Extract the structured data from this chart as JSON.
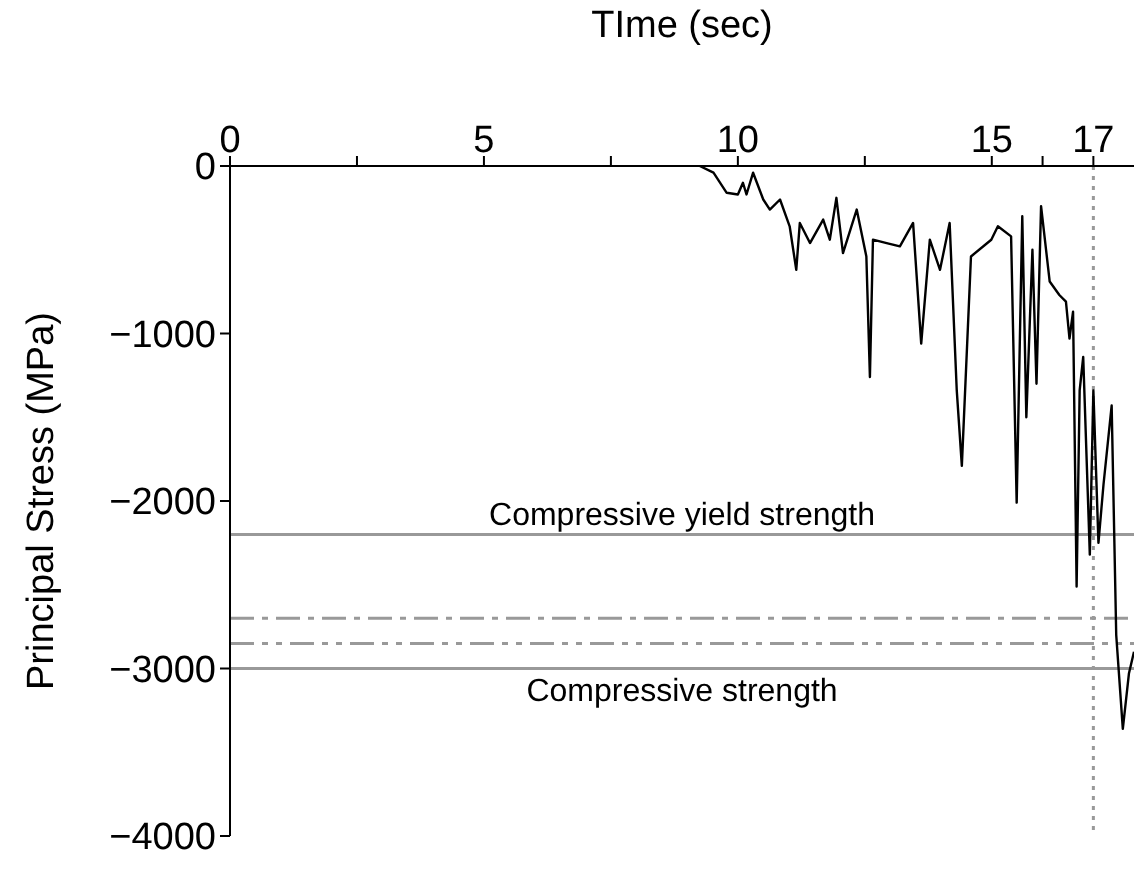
{
  "chart_data": {
    "type": "line",
    "xlabel": "TIme (sec)",
    "ylabel": "Principal Stress (MPa)",
    "x": [
      9.25,
      9.52,
      9.78,
      10.0,
      10.1,
      10.17,
      10.3,
      10.5,
      10.63,
      10.83,
      11.02,
      11.15,
      11.22,
      11.42,
      11.68,
      11.81,
      11.94,
      12.07,
      12.34,
      12.53,
      12.6,
      12.66,
      12.93,
      13.19,
      13.45,
      13.61,
      13.78,
      13.98,
      14.17,
      14.31,
      14.41,
      14.59,
      14.99,
      15.12,
      15.38,
      15.49,
      15.6,
      15.68,
      15.8,
      15.88,
      15.97,
      16.14,
      16.33,
      16.46,
      16.53,
      16.6,
      16.67,
      16.73,
      16.8,
      16.93,
      17.0,
      17.1,
      17.2,
      17.36,
      17.45,
      17.58,
      17.7,
      17.8
    ],
    "series": [
      {
        "color": "#000000",
        "values": [
          0,
          -40,
          -160,
          -170,
          -100,
          -170,
          -40,
          -200,
          -260,
          -200,
          -360,
          -620,
          -340,
          -460,
          -320,
          -440,
          -190,
          -520,
          -260,
          -540,
          -1260,
          -440,
          -460,
          -480,
          -340,
          -1060,
          -440,
          -620,
          -340,
          -1340,
          -1790,
          -540,
          -440,
          -360,
          -420,
          -2010,
          -300,
          -1500,
          -500,
          -1300,
          -240,
          -690,
          -770,
          -810,
          -1030,
          -870,
          -2510,
          -1340,
          -1140,
          -2320,
          -1340,
          -2250,
          -1900,
          -1430,
          -2800,
          -3360,
          -3030,
          -2900
        ]
      }
    ],
    "xlim": [
      0,
      17.8
    ],
    "xticks": [
      0,
      {
        "value": 2.5,
        "label": null
      },
      5,
      {
        "value": 7.5,
        "label": null
      },
      10,
      {
        "value": 12.5,
        "label": null
      },
      15,
      {
        "value": 16,
        "label": null
      },
      17
    ],
    "ylim": [
      -4000,
      0
    ],
    "yticks": [
      {
        "value": -4000,
        "label": "−4000"
      },
      {
        "value": -3000,
        "label": "−3000"
      },
      {
        "value": -2000,
        "label": "−2000"
      },
      {
        "value": -1000,
        "label": "−1000"
      },
      0
    ],
    "marker": "none",
    "line_style": "solid",
    "ref_lines": [
      {
        "axis": "y",
        "value": -2200,
        "label": "Compressive yield strength",
        "color": "#999999",
        "line_style": "solid"
      },
      {
        "axis": "y",
        "value": -2700,
        "color": "#999999",
        "line_style": "dashdot"
      },
      {
        "axis": "y",
        "value": -2850,
        "color": "#999999",
        "line_style": "dashdotdot"
      },
      {
        "axis": "y",
        "value": -3000,
        "label": "Compressive strength",
        "color": "#999999",
        "line_style": "solid"
      },
      {
        "axis": "x",
        "value": 17,
        "color": "#999999",
        "line_style": "dotted"
      }
    ]
  }
}
